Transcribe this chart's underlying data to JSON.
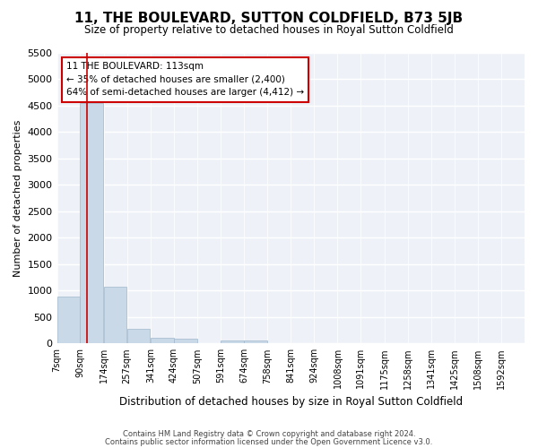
{
  "title": "11, THE BOULEVARD, SUTTON COLDFIELD, B73 5JB",
  "subtitle": "Size of property relative to detached houses in Royal Sutton Coldfield",
  "xlabel": "Distribution of detached houses by size in Royal Sutton Coldfield",
  "ylabel": "Number of detached properties",
  "footer_line1": "Contains HM Land Registry data © Crown copyright and database right 2024.",
  "footer_line2": "Contains public sector information licensed under the Open Government Licence v3.0.",
  "annotation_line1": "11 THE BOULEVARD: 113sqm",
  "annotation_line2": "← 35% of detached houses are smaller (2,400)",
  "annotation_line3": "64% of semi-detached houses are larger (4,412) →",
  "property_size": 113,
  "bar_color": "#c9d9e8",
  "bar_edge_color": "#a0b8cc",
  "marker_line_color": "#cc0000",
  "annotation_box_color": "#cc0000",
  "background_color": "#eef2f8",
  "bins": [
    7,
    90,
    174,
    257,
    341,
    424,
    507,
    591,
    674,
    758,
    841,
    924,
    1008,
    1091,
    1175,
    1258,
    1341,
    1425,
    1508,
    1592,
    1675
  ],
  "bin_labels": [
    "7sqm",
    "90sqm",
    "174sqm",
    "257sqm",
    "341sqm",
    "424sqm",
    "507sqm",
    "591sqm",
    "674sqm",
    "758sqm",
    "841sqm",
    "924sqm",
    "1008sqm",
    "1091sqm",
    "1175sqm",
    "1258sqm",
    "1341sqm",
    "1425sqm",
    "1508sqm",
    "1592sqm"
  ],
  "values": [
    880,
    4550,
    1070,
    280,
    100,
    95,
    0,
    55,
    50,
    0,
    0,
    0,
    0,
    0,
    0,
    0,
    0,
    0,
    0,
    0
  ],
  "ylim": [
    0,
    5500
  ],
  "yticks": [
    0,
    500,
    1000,
    1500,
    2000,
    2500,
    3000,
    3500,
    4000,
    4500,
    5000,
    5500
  ]
}
